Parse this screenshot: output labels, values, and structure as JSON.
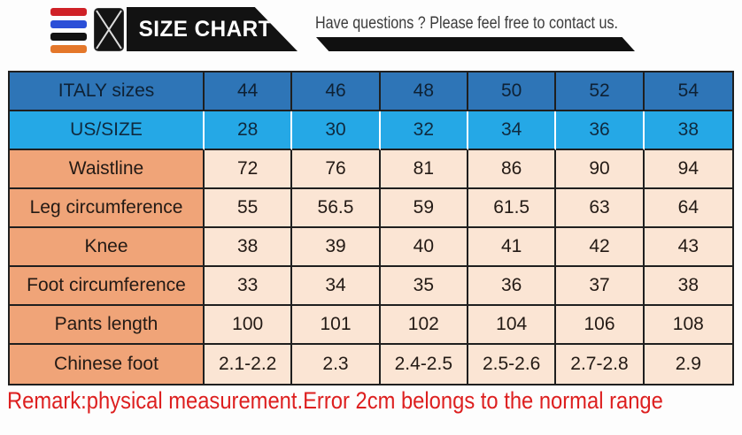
{
  "header": {
    "bars": [
      {
        "name": "red-bar",
        "color": "#cf2127"
      },
      {
        "name": "blue-bar",
        "color": "#2b4fd7"
      },
      {
        "name": "black-bar",
        "color": "#121212"
      },
      {
        "name": "orange-bar",
        "color": "#e4772a"
      }
    ],
    "title": "SIZE CHART",
    "contact_text": "Have questions ? Please feel free to contact us."
  },
  "colors": {
    "italy_row_blue": "#2e75b7",
    "us_row_blue": "#25a8e6",
    "label_peach": "#f0a478",
    "value_peach": "#fbe5d4",
    "table_border": "#1f1f1f",
    "remark_red": "#dd1f1f",
    "banner_black": "#121212"
  },
  "remark": "Remark:physical measurement.Error 2cm belongs to the normal range",
  "chart_data": {
    "type": "table",
    "title": "SIZE CHART",
    "rows": [
      {
        "label": "ITALY sizes",
        "values": [
          "44",
          "46",
          "48",
          "50",
          "52",
          "54"
        ]
      },
      {
        "label": "US/SIZE",
        "values": [
          "28",
          "30",
          "32",
          "34",
          "36",
          "38"
        ]
      },
      {
        "label": "Waistline",
        "values": [
          "72",
          "76",
          "81",
          "86",
          "90",
          "94"
        ]
      },
      {
        "label": "Leg circumference",
        "values": [
          "55",
          "56.5",
          "59",
          "61.5",
          "63",
          "64"
        ]
      },
      {
        "label": "Knee",
        "values": [
          "38",
          "39",
          "40",
          "41",
          "42",
          "43"
        ]
      },
      {
        "label": "Foot circumference",
        "values": [
          "33",
          "34",
          "35",
          "36",
          "37",
          "38"
        ]
      },
      {
        "label": "Pants length",
        "values": [
          "100",
          "101",
          "102",
          "104",
          "106",
          "108"
        ]
      },
      {
        "label": "Chinese foot",
        "values": [
          "2.1-2.2",
          "2.3",
          "2.4-2.5",
          "2.5-2.6",
          "2.7-2.8",
          "2.9"
        ]
      }
    ],
    "note": "Remark:physical measurement.Error 2cm belongs to the normal range"
  }
}
